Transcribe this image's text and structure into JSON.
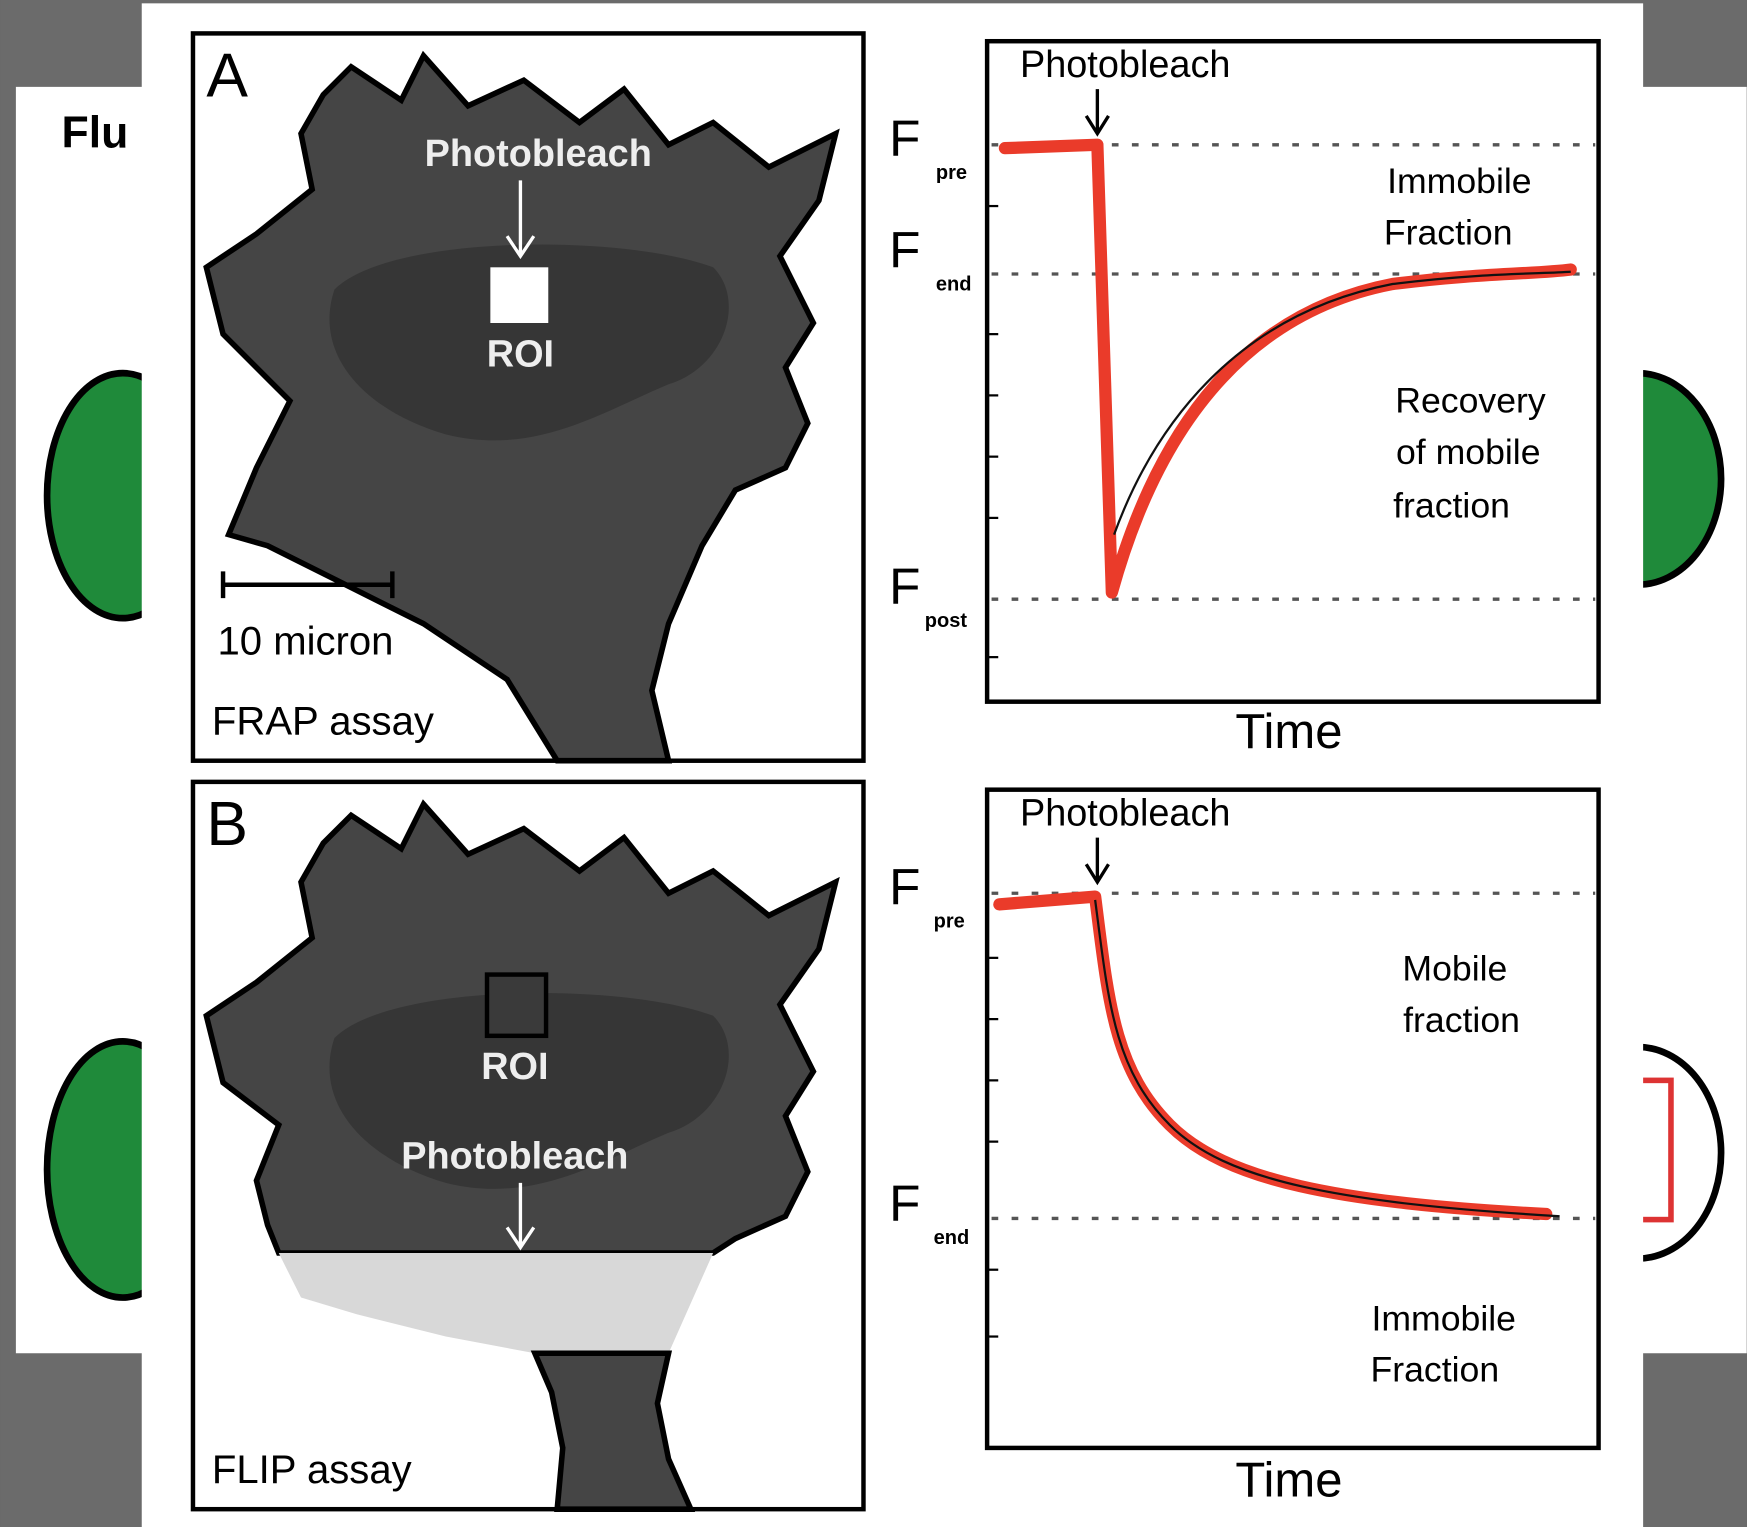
{
  "background": {
    "title": "Flu"
  },
  "panels": [
    {
      "label": "A",
      "cell": {
        "bleach_label": "Photobleach",
        "roi_label": "ROI",
        "scale_bar": "10 micron",
        "assay": "FRAP assay"
      },
      "plot": {
        "bleach_label": "Photobleach",
        "levels": [
          {
            "symbol": "F",
            "subscript": "pre"
          },
          {
            "symbol": "F",
            "subscript": "end"
          },
          {
            "symbol": "F",
            "subscript": "post"
          }
        ],
        "regions": [
          {
            "lines": [
              "Immobile",
              "Fraction"
            ]
          },
          {
            "lines": [
              "Recovery",
              "of mobile",
              "fraction"
            ]
          }
        ],
        "x_label": "Time"
      }
    },
    {
      "label": "B",
      "cell": {
        "roi_label": "ROI",
        "bleach_label": "Photobleach",
        "assay": "FLIP assay"
      },
      "plot": {
        "bleach_label": "Photobleach",
        "levels": [
          {
            "symbol": "F",
            "subscript": "pre"
          },
          {
            "symbol": "F",
            "subscript": "end"
          }
        ],
        "regions": [
          {
            "lines": [
              "Mobile",
              "fraction"
            ]
          },
          {
            "lines": [
              "Immobile",
              "Fraction"
            ]
          }
        ],
        "x_label": "Time"
      }
    }
  ]
}
